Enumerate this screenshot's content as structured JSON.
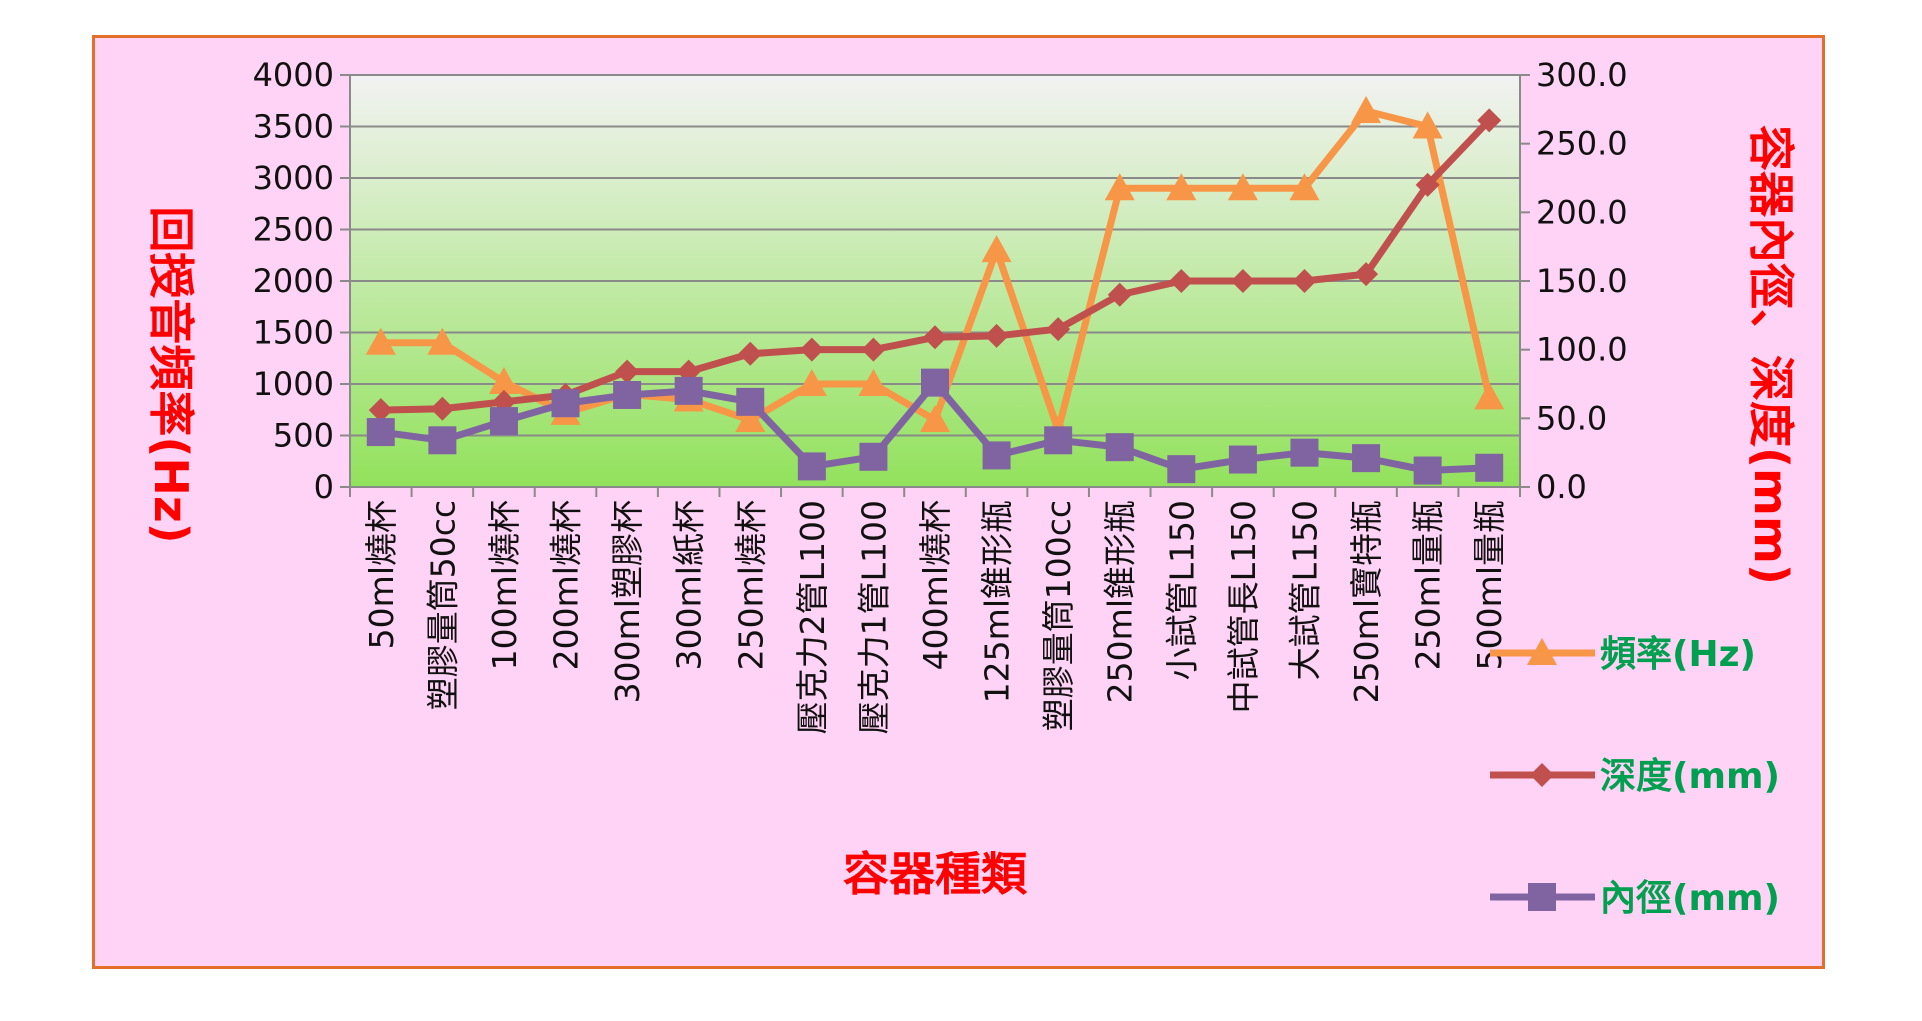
{
  "chart_data": {
    "type": "line",
    "xlabel": "容器種類",
    "ylabel_left": "回授音頻率(Hz)",
    "ylabel_right": "容器內徑、深度(mm)",
    "ylim_left": [
      0,
      4000
    ],
    "yticks_left": [
      "4000",
      "3500",
      "3000",
      "2500",
      "2000",
      "1500",
      "1000",
      "500",
      "0"
    ],
    "ylim_right": [
      0,
      300
    ],
    "yticks_right": [
      "300.0",
      "250.0",
      "200.0",
      "150.0",
      "100.0",
      "50.0",
      "0.0"
    ],
    "grid": true,
    "legend_position": "right",
    "categories": [
      "50ml燒杯",
      "塑膠量筒50cc",
      "100ml燒杯",
      "200ml燒杯",
      "300ml塑膠杯",
      "300ml紙杯",
      "250ml燒杯",
      "壓克力2管L100",
      "壓克力1管L100",
      "400ml燒杯",
      "125ml錐形瓶",
      "塑膠量筒100cc",
      "250ml錐形瓶",
      "小試管L150",
      "中試管長L150",
      "大試管L150",
      "250ml寶特瓶",
      "250ml量瓶",
      "500ml量瓶"
    ],
    "series": [
      {
        "name": "頻率(Hz)",
        "axis": "left",
        "color": "#f79646",
        "marker": "triangle",
        "values": [
          1400,
          1400,
          1020,
          720,
          900,
          850,
          650,
          1000,
          1000,
          650,
          2300,
          550,
          2900,
          2900,
          2900,
          2900,
          3650,
          3500,
          870
        ]
      },
      {
        "name": "深度(mm)",
        "axis": "right",
        "color": "#c0504d",
        "marker": "diamond",
        "values": [
          56,
          57,
          62,
          67,
          84,
          84,
          97,
          100,
          100,
          109,
          110,
          115,
          140,
          150,
          150,
          150,
          155,
          220,
          267
        ]
      },
      {
        "name": "內徑(mm)",
        "axis": "right",
        "color": "#8064a2",
        "marker": "square",
        "values": [
          40,
          34,
          48,
          61,
          67,
          70,
          62,
          15,
          22,
          76,
          23,
          34,
          29,
          13,
          20,
          25,
          21,
          12,
          14
        ]
      }
    ]
  }
}
